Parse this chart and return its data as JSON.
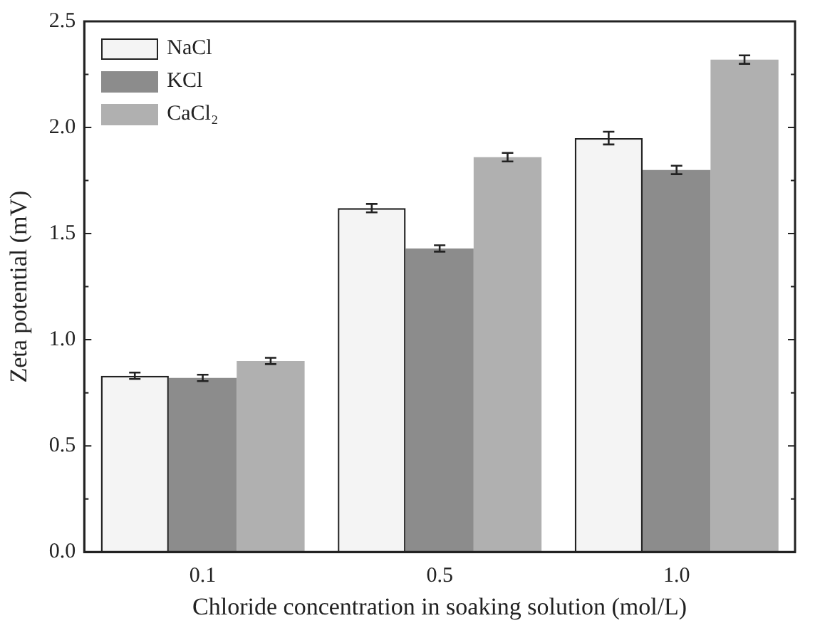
{
  "chart_data": {
    "type": "bar",
    "xlabel": "Chloride concentration in soaking solution (mol/L)",
    "ylabel": "Zeta potential (mV)",
    "categories": [
      "0.1",
      "0.5",
      "1.0"
    ],
    "series": [
      {
        "name": "NaCl",
        "color": "#f4f4f4",
        "values": [
          0.83,
          1.62,
          1.95
        ],
        "errors": [
          0.015,
          0.02,
          0.03
        ]
      },
      {
        "name": "KCl",
        "color": "#8c8c8c",
        "values": [
          0.82,
          1.43,
          1.8
        ],
        "errors": [
          0.015,
          0.015,
          0.02
        ]
      },
      {
        "name": "CaCl₂",
        "color": "#b0b0b0",
        "values": [
          0.9,
          1.86,
          2.32
        ],
        "errors": [
          0.015,
          0.02,
          0.02
        ]
      }
    ],
    "ylim": [
      0,
      2.5
    ],
    "yticks": [
      {
        "value": 0,
        "label": "0.0"
      },
      {
        "value": 0.25,
        "label": null
      },
      {
        "value": 0.5,
        "label": "0.5"
      },
      {
        "value": 0.75,
        "label": null
      },
      {
        "value": 1,
        "label": "1.0"
      },
      {
        "value": 1.25,
        "label": null
      },
      {
        "value": 1.5,
        "label": "1.5"
      },
      {
        "value": 1.75,
        "label": null
      },
      {
        "value": 2,
        "label": "2.0"
      },
      {
        "value": 2.25,
        "label": null
      },
      {
        "value": 2.5,
        "label": "2.5"
      }
    ],
    "grid": false,
    "legend": "top left"
  }
}
